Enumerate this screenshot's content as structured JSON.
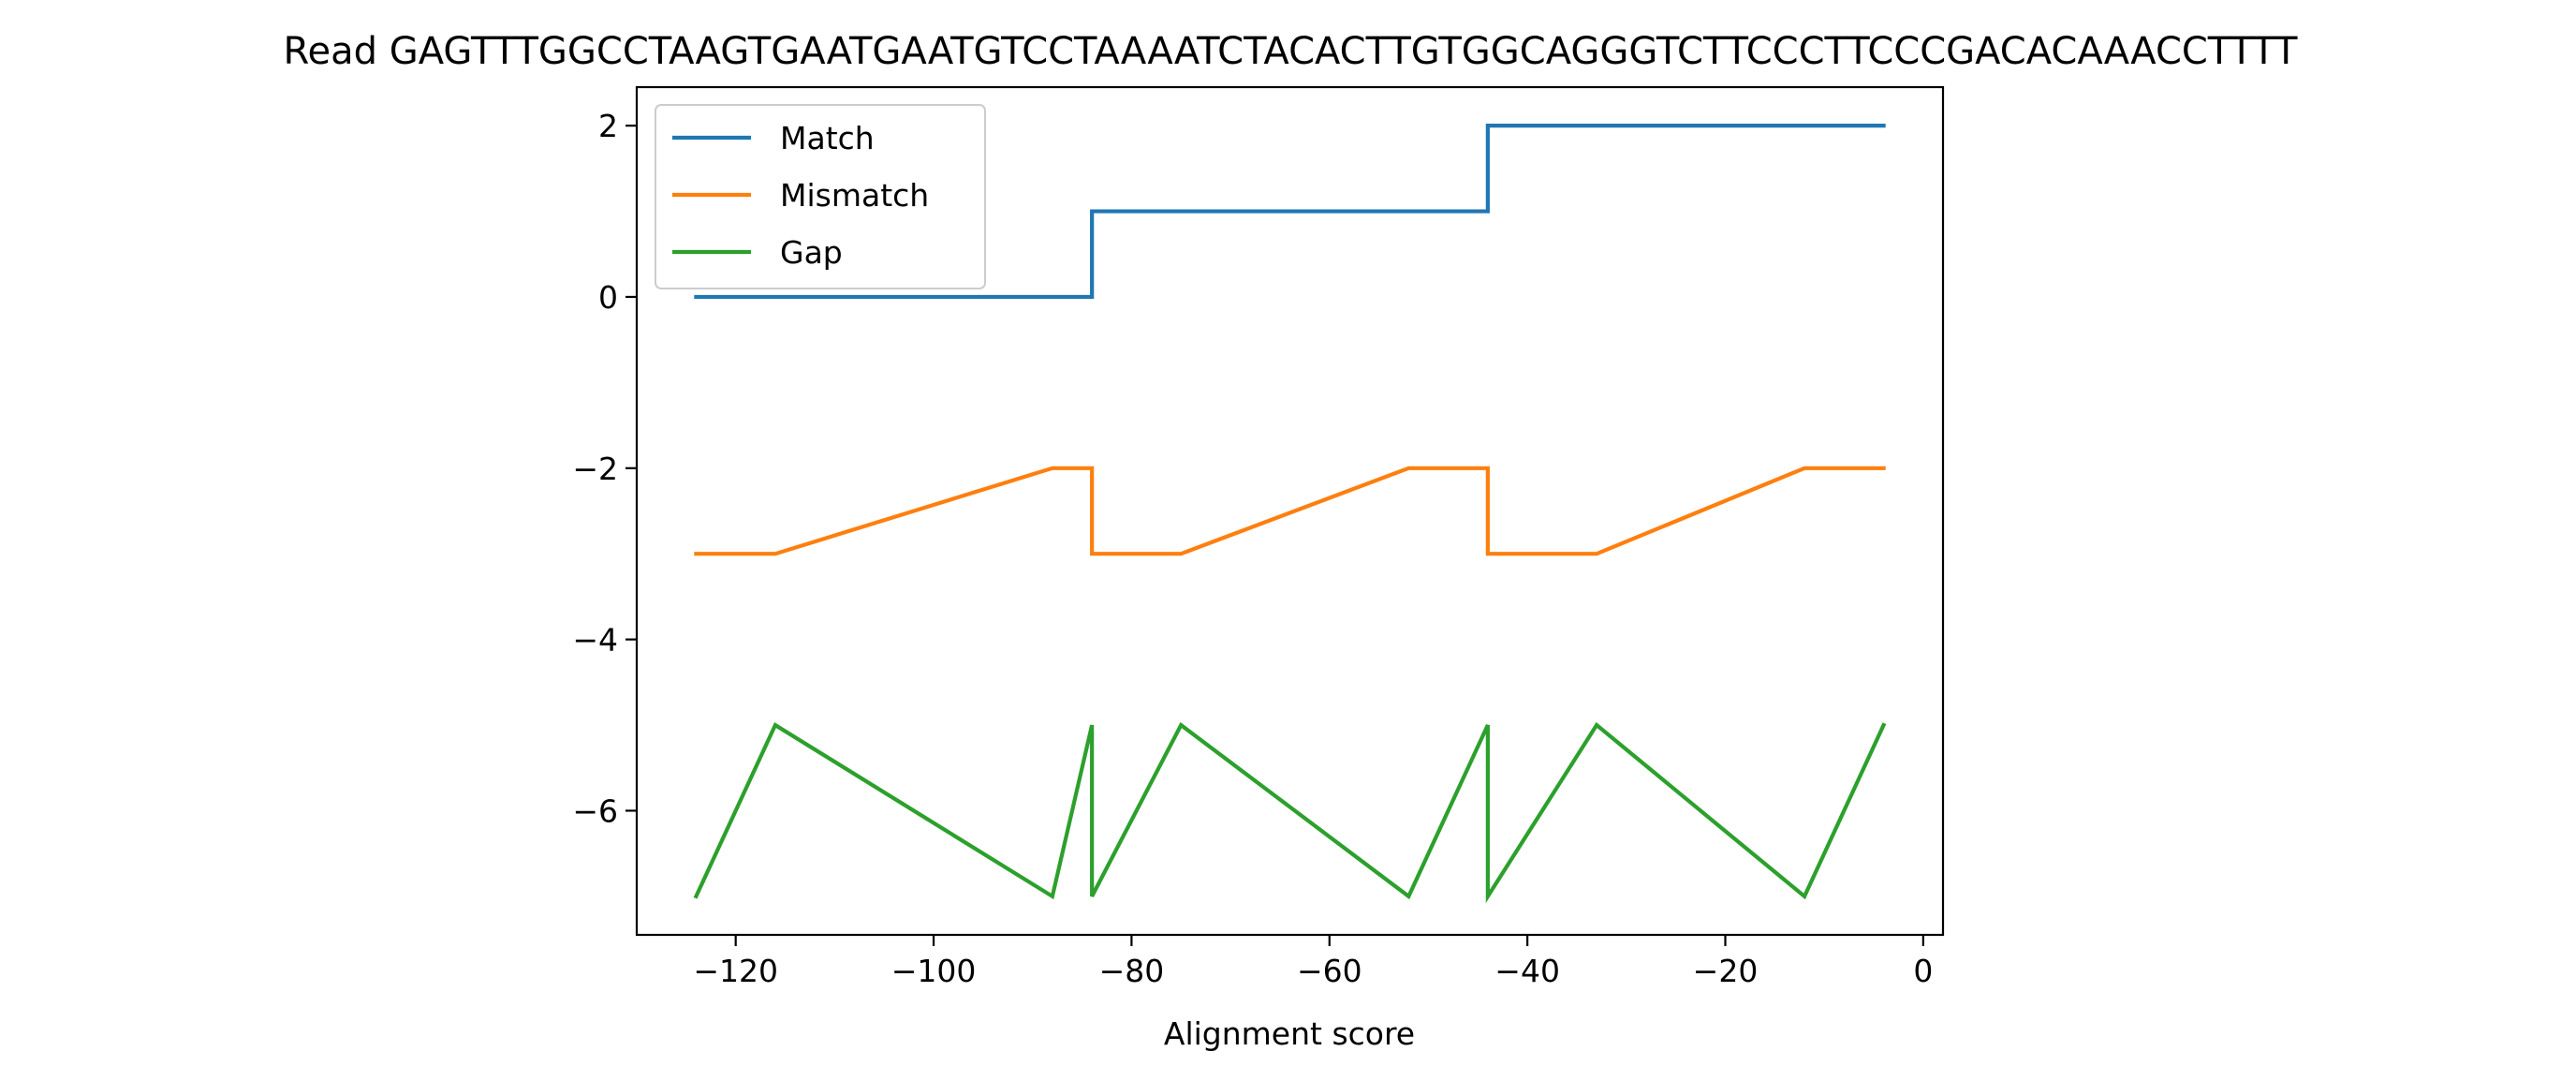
{
  "chart_data": {
    "type": "line",
    "title": "Read GAGTTTGGCCTAAGTGAATGAATGTCCTAAAATCTACACTTGTGGCAGGGTCTTCCCTTCCCGACACAAACCTTTT",
    "xlabel": "Alignment score",
    "ylabel": "",
    "xlim": [
      -130,
      2
    ],
    "ylim": [
      -7.45,
      2.45
    ],
    "xticks": [
      -120,
      -100,
      -80,
      -60,
      -40,
      -20,
      0
    ],
    "xtick_labels": [
      "−120",
      "−100",
      "−80",
      "−60",
      "−40",
      "−20",
      "0"
    ],
    "yticks": [
      2,
      0,
      -2,
      -4,
      -6
    ],
    "ytick_labels": [
      "2",
      "0",
      "−2",
      "−4",
      "−6"
    ],
    "grid": false,
    "legend_position": "upper-left",
    "series": [
      {
        "name": "Match",
        "color": "#1f77b4",
        "x": [
          -124,
          -84,
          -84,
          -44,
          -44,
          -4
        ],
        "y": [
          0,
          0,
          1,
          1,
          2,
          2
        ]
      },
      {
        "name": "Mismatch",
        "color": "#ff7f0e",
        "x": [
          -124,
          -116,
          -88,
          -84,
          -84,
          -75,
          -52,
          -44,
          -44,
          -33,
          -12,
          -4
        ],
        "y": [
          -3,
          -3,
          -2,
          -2,
          -3,
          -3,
          -2,
          -2,
          -3,
          -3,
          -2,
          -2
        ]
      },
      {
        "name": "Gap",
        "color": "#2ca02c",
        "x": [
          -124,
          -116,
          -88,
          -84,
          -84,
          -75,
          -52,
          -44,
          -44,
          -33,
          -12,
          -4
        ],
        "y": [
          -7,
          -5,
          -7,
          -5,
          -7,
          -5,
          -7,
          -5,
          -7,
          -5,
          -7,
          -5
        ]
      }
    ]
  }
}
